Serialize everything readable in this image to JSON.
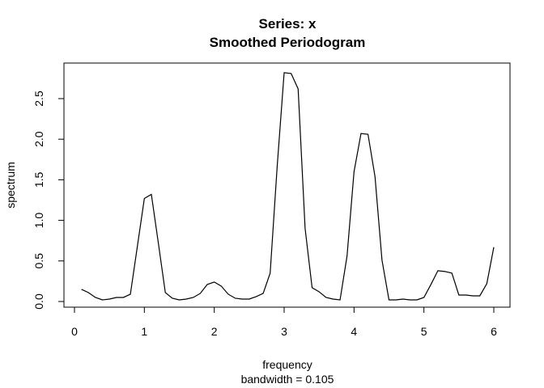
{
  "chart_data": {
    "type": "line",
    "title": "Series: x",
    "subtitle": "Smoothed Periodogram",
    "xlabel": "frequency",
    "xsublabel": "bandwidth = 0.105",
    "ylabel": "spectrum",
    "xlim": [
      0,
      6.2
    ],
    "ylim": [
      0,
      2.9
    ],
    "xticks": [
      0,
      1,
      2,
      3,
      4,
      5,
      6
    ],
    "xtick_labels": [
      "0",
      "1",
      "2",
      "3",
      "4",
      "5",
      "6"
    ],
    "yticks": [
      0,
      0.5,
      1,
      1.5,
      2,
      2.5
    ],
    "ytick_labels": [
      "0.0",
      "0.5",
      "1.0",
      "1.5",
      "2.0",
      "2.5"
    ],
    "grid": false,
    "line_color": "#000000",
    "series": [
      {
        "x": [
          0.1,
          0.2,
          0.3,
          0.4,
          0.5,
          0.6,
          0.7,
          0.8,
          0.9,
          1.0,
          1.1,
          1.2,
          1.3,
          1.4,
          1.5,
          1.6,
          1.7,
          1.8,
          1.9,
          2.0,
          2.1,
          2.2,
          2.3,
          2.4,
          2.5,
          2.6,
          2.7,
          2.8,
          2.9,
          3.0,
          3.1,
          3.2,
          3.3,
          3.4,
          3.5,
          3.6,
          3.7,
          3.8,
          3.9,
          4.0,
          4.1,
          4.2,
          4.3,
          4.4,
          4.5,
          4.6,
          4.7,
          4.8,
          4.9,
          5.0,
          5.1,
          5.2,
          5.3,
          5.4,
          5.5,
          5.6,
          5.7,
          5.8,
          5.9,
          6.0
        ],
        "values": [
          0.15,
          0.11,
          0.05,
          0.02,
          0.03,
          0.05,
          0.05,
          0.09,
          0.68,
          1.27,
          1.32,
          0.72,
          0.11,
          0.04,
          0.02,
          0.03,
          0.05,
          0.1,
          0.21,
          0.24,
          0.19,
          0.09,
          0.04,
          0.03,
          0.03,
          0.06,
          0.1,
          0.35,
          1.66,
          2.82,
          2.81,
          2.62,
          0.9,
          0.17,
          0.12,
          0.05,
          0.03,
          0.02,
          0.56,
          1.6,
          2.07,
          2.06,
          1.54,
          0.51,
          0.02,
          0.02,
          0.03,
          0.02,
          0.02,
          0.05,
          0.21,
          0.38,
          0.37,
          0.35,
          0.08,
          0.08,
          0.07,
          0.07,
          0.22,
          0.67
        ]
      }
    ]
  }
}
